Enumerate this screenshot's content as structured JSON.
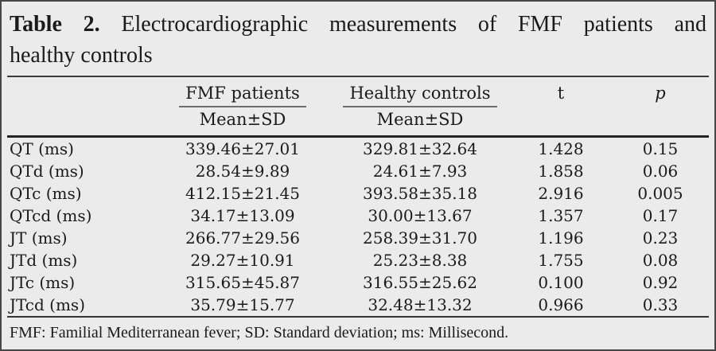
{
  "title": {
    "label": "Table 2.",
    "line1_rest": "Electrocardiographic measurements of FMF patients and",
    "line2": "healthy controls"
  },
  "header": {
    "group_fmf": "FMF patients",
    "group_healthy": "Healthy controls",
    "sub_fmf": "Mean±SD",
    "sub_healthy": "Mean±SD",
    "t": "t",
    "p": "p"
  },
  "chart_data": {
    "type": "table",
    "columns": [
      "",
      "FMF patients (Mean±SD)",
      "Healthy controls (Mean±SD)",
      "t",
      "p"
    ],
    "rows": [
      [
        "QT (ms)",
        "339.46±27.01",
        "329.81±32.64",
        "1.428",
        "0.15"
      ],
      [
        "QTd (ms)",
        "28.54±9.89",
        "24.61±7.93",
        "1.858",
        "0.06"
      ],
      [
        "QTc (ms)",
        "412.15±21.45",
        "393.58±35.18",
        "2.916",
        "0.005"
      ],
      [
        "QTcd (ms)",
        "34.17±13.09",
        "30.00±13.67",
        "1.357",
        "0.17"
      ],
      [
        "JT (ms)",
        "266.77±29.56",
        "258.39±31.70",
        "1.196",
        "0.23"
      ],
      [
        "JTd (ms)",
        "29.27±10.91",
        "25.23±8.38",
        "1.755",
        "0.08"
      ],
      [
        "JTc (ms)",
        "315.65±45.87",
        "316.55±25.62",
        "0.100",
        "0.92"
      ],
      [
        "JTcd (ms)",
        "35.79±15.77",
        "32.48±13.32",
        "0.966",
        "0.33"
      ]
    ]
  },
  "footnote": "FMF: Familial Mediterranean fever; SD: Standard deviation; ms: Millisecond.",
  "colors": {
    "background": "#ebebeb",
    "outer_border": "#474747",
    "rule": "#3c3c3c",
    "thick_rule": "#232323",
    "group_underline": "#6e6e6e",
    "text": "#1a1a1a"
  }
}
